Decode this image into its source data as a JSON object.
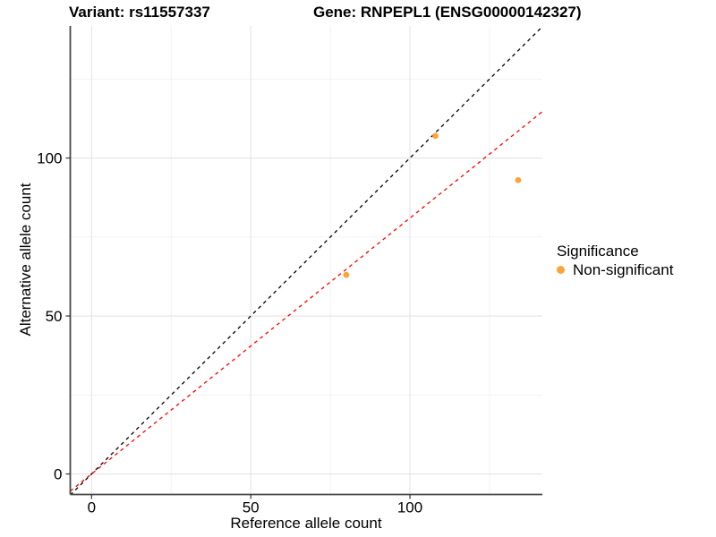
{
  "chart_data": {
    "type": "scatter",
    "title_left": "Variant: rs11557337",
    "title_right": "Gene: RNPEPL1 (ENSG00000142327)",
    "xlabel": "Reference allele count",
    "ylabel": "Alternative allele count",
    "xlim": [
      -6.7,
      141.6
    ],
    "ylim": [
      -6.5,
      141.8
    ],
    "xticks": [
      0,
      50,
      100
    ],
    "yticks": [
      0,
      50,
      100
    ],
    "xticks_minor": [
      25,
      75,
      125
    ],
    "yticks_minor": [
      25,
      75,
      125
    ],
    "grid": true,
    "series": [
      {
        "name": "Non-significant",
        "color": "#FAA43A",
        "points": [
          {
            "x": 108,
            "y": 107
          },
          {
            "x": 80,
            "y": 63
          },
          {
            "x": 134,
            "y": 93
          }
        ]
      }
    ],
    "lines": [
      {
        "name": "identity-line",
        "slope": 1,
        "intercept": 0,
        "color": "#000000",
        "style": "dashed"
      },
      {
        "name": "fit-line",
        "slope": 0.81,
        "intercept": 0,
        "color": "#FF0000",
        "style": "dashed"
      }
    ],
    "legend": {
      "title": "Significance",
      "position": "right",
      "items": [
        {
          "label": "Non-significant",
          "color": "#FAA43A"
        }
      ]
    },
    "colors": {
      "axis_line": "#474747",
      "tick_mark": "#333333",
      "grid_major": "#E4E4E4",
      "grid_minor": "#F2F2F2",
      "background": "#FFFFFF"
    }
  }
}
